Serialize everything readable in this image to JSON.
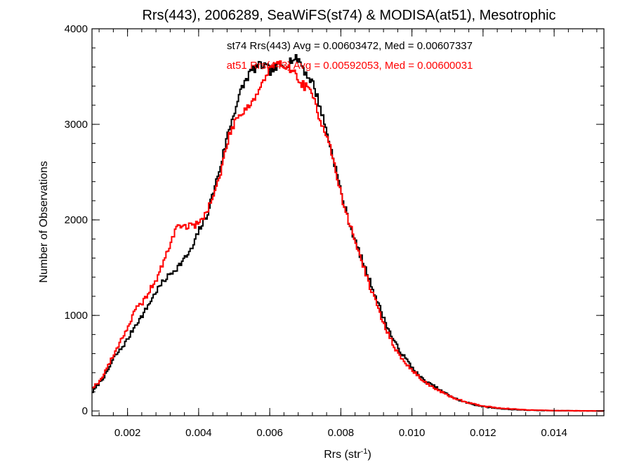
{
  "chart_data": {
    "type": "histogram",
    "title": "Rrs(443), 2006289, SeaWiFS(st74) & MODISA(at51), Mesotrophic",
    "xlabel": "Rrs (str",
    "xlabel_sup": "-1",
    "xlabel_end": ")",
    "ylabel": "Number of Observations",
    "xlim": [
      0.001,
      0.0154
    ],
    "ylim": [
      -50,
      4000
    ],
    "xticks": [
      0.002,
      0.004,
      0.006,
      0.008,
      0.01,
      0.012,
      0.014
    ],
    "xtick_labels": [
      "0.002",
      "0.004",
      "0.006",
      "0.008",
      "0.010",
      "0.012",
      "0.014"
    ],
    "yticks": [
      0,
      1000,
      2000,
      3000,
      4000
    ],
    "ytick_labels": [
      "0",
      "1000",
      "2000",
      "3000",
      "4000"
    ],
    "grid": false,
    "annotations": [
      {
        "text": "st74 Rrs(443) Avg = 0.00603472, Med = 0.00607337",
        "color": "#000000"
      },
      {
        "text": "at51 Rrs(443) Avg = 0.00592053, Med = 0.00600031",
        "color": "#ff0000"
      }
    ],
    "series": [
      {
        "color": "#000000",
        "points": [
          [
            0.001,
            200
          ],
          [
            0.0012,
            300
          ],
          [
            0.0014,
            400
          ],
          [
            0.0016,
            560
          ],
          [
            0.0018,
            650
          ],
          [
            0.002,
            760
          ],
          [
            0.0022,
            900
          ],
          [
            0.0024,
            1000
          ],
          [
            0.0026,
            1130
          ],
          [
            0.0028,
            1260
          ],
          [
            0.003,
            1360
          ],
          [
            0.0032,
            1440
          ],
          [
            0.0034,
            1510
          ],
          [
            0.0036,
            1600
          ],
          [
            0.0038,
            1700
          ],
          [
            0.004,
            1900
          ],
          [
            0.0042,
            2030
          ],
          [
            0.0044,
            2300
          ],
          [
            0.0046,
            2570
          ],
          [
            0.0048,
            2900
          ],
          [
            0.005,
            3150
          ],
          [
            0.0052,
            3380
          ],
          [
            0.0054,
            3530
          ],
          [
            0.0056,
            3600
          ],
          [
            0.0058,
            3620
          ],
          [
            0.006,
            3560
          ],
          [
            0.0062,
            3600
          ],
          [
            0.0064,
            3620
          ],
          [
            0.0066,
            3680
          ],
          [
            0.0068,
            3680
          ],
          [
            0.007,
            3530
          ],
          [
            0.0072,
            3430
          ],
          [
            0.0074,
            3180
          ],
          [
            0.0076,
            2900
          ],
          [
            0.0078,
            2600
          ],
          [
            0.008,
            2270
          ],
          [
            0.0082,
            1990
          ],
          [
            0.0084,
            1760
          ],
          [
            0.0086,
            1560
          ],
          [
            0.0088,
            1360
          ],
          [
            0.009,
            1160
          ],
          [
            0.0092,
            960
          ],
          [
            0.0094,
            790
          ],
          [
            0.0096,
            650
          ],
          [
            0.0098,
            550
          ],
          [
            0.01,
            450
          ],
          [
            0.0102,
            360
          ],
          [
            0.0104,
            300
          ],
          [
            0.0106,
            260
          ],
          [
            0.0108,
            210
          ],
          [
            0.011,
            170
          ],
          [
            0.0112,
            130
          ],
          [
            0.0114,
            100
          ],
          [
            0.0116,
            80
          ],
          [
            0.0118,
            60
          ],
          [
            0.012,
            45
          ],
          [
            0.0122,
            35
          ],
          [
            0.0124,
            28
          ],
          [
            0.0126,
            20
          ],
          [
            0.0128,
            15
          ],
          [
            0.013,
            12
          ],
          [
            0.0132,
            9
          ],
          [
            0.0134,
            7
          ],
          [
            0.0136,
            5
          ],
          [
            0.0138,
            4
          ],
          [
            0.014,
            3
          ],
          [
            0.0142,
            2
          ],
          [
            0.0144,
            2
          ],
          [
            0.0146,
            1
          ],
          [
            0.0148,
            1
          ],
          [
            0.015,
            1
          ],
          [
            0.0152,
            0
          ],
          [
            0.0154,
            0
          ]
        ]
      },
      {
        "color": "#ff0000",
        "points": [
          [
            0.001,
            250
          ],
          [
            0.0012,
            310
          ],
          [
            0.0014,
            450
          ],
          [
            0.0016,
            590
          ],
          [
            0.0018,
            750
          ],
          [
            0.002,
            880
          ],
          [
            0.0022,
            1060
          ],
          [
            0.0024,
            1130
          ],
          [
            0.0026,
            1260
          ],
          [
            0.0028,
            1380
          ],
          [
            0.003,
            1560
          ],
          [
            0.0032,
            1770
          ],
          [
            0.0034,
            1950
          ],
          [
            0.0036,
            1930
          ],
          [
            0.0038,
            1940
          ],
          [
            0.004,
            1960
          ],
          [
            0.0042,
            2090
          ],
          [
            0.0044,
            2250
          ],
          [
            0.0046,
            2490
          ],
          [
            0.0048,
            2830
          ],
          [
            0.005,
            3040
          ],
          [
            0.0052,
            3130
          ],
          [
            0.0054,
            3200
          ],
          [
            0.0056,
            3300
          ],
          [
            0.0058,
            3450
          ],
          [
            0.006,
            3590
          ],
          [
            0.0062,
            3620
          ],
          [
            0.0064,
            3630
          ],
          [
            0.0066,
            3580
          ],
          [
            0.0068,
            3450
          ],
          [
            0.007,
            3390
          ],
          [
            0.0072,
            3290
          ],
          [
            0.0074,
            3050
          ],
          [
            0.0076,
            2880
          ],
          [
            0.0078,
            2570
          ],
          [
            0.008,
            2240
          ],
          [
            0.0082,
            1990
          ],
          [
            0.0084,
            1760
          ],
          [
            0.0086,
            1530
          ],
          [
            0.0088,
            1300
          ],
          [
            0.009,
            1100
          ],
          [
            0.0092,
            900
          ],
          [
            0.0094,
            740
          ],
          [
            0.0096,
            590
          ],
          [
            0.0098,
            500
          ],
          [
            0.01,
            420
          ],
          [
            0.0102,
            350
          ],
          [
            0.0104,
            290
          ],
          [
            0.0106,
            240
          ],
          [
            0.0108,
            200
          ],
          [
            0.011,
            160
          ],
          [
            0.0112,
            130
          ],
          [
            0.0114,
            105
          ],
          [
            0.0116,
            85
          ],
          [
            0.0118,
            65
          ],
          [
            0.012,
            50
          ],
          [
            0.0122,
            40
          ],
          [
            0.0124,
            32
          ],
          [
            0.0126,
            26
          ],
          [
            0.0128,
            20
          ],
          [
            0.013,
            16
          ],
          [
            0.0132,
            12
          ],
          [
            0.0134,
            9
          ],
          [
            0.0136,
            7
          ],
          [
            0.0138,
            5
          ],
          [
            0.014,
            4
          ],
          [
            0.0142,
            3
          ],
          [
            0.0144,
            2
          ],
          [
            0.0146,
            2
          ],
          [
            0.0148,
            1
          ],
          [
            0.015,
            1
          ],
          [
            0.0152,
            0
          ],
          [
            0.0154,
            0
          ]
        ]
      }
    ]
  }
}
